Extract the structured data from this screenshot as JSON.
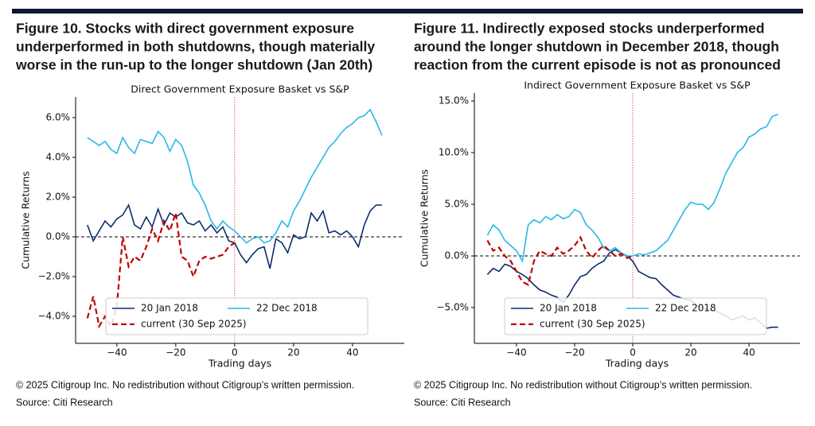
{
  "figures": [
    {
      "title_lines": [
        "Figure 10. Stocks with direct government exposure",
        "underperformed in both shutdowns, though materially",
        "worse in the run-up to the longer shutdown (Jan 20th)"
      ],
      "note": "© 2025 Citigroup Inc. No redistribution without Citigroup’s written permission.",
      "source": "Source: Citi Research"
    },
    {
      "title_lines": [
        "Figure 11. Indirectly exposed stocks underperformed",
        "around the longer shutdown in December 2018, though",
        "reaction from the current episode is not as pronounced"
      ],
      "note": "© 2025 Citigroup Inc. No redistribution without Citigroup’s written permission.",
      "source": "Source: Citi Research"
    }
  ],
  "chart_data": [
    {
      "type": "line",
      "title": "Direct Government Exposure Basket vs S&P",
      "x_label": "Trading days",
      "y_label": "Cumulative Returns",
      "x": [
        -50,
        -48,
        -46,
        -44,
        -42,
        -40,
        -38,
        -36,
        -34,
        -32,
        -30,
        -28,
        -26,
        -24,
        -22,
        -20,
        -18,
        -16,
        -14,
        -12,
        -10,
        -8,
        -6,
        -4,
        -2,
        0,
        2,
        4,
        6,
        8,
        10,
        12,
        14,
        16,
        18,
        20,
        22,
        24,
        26,
        28,
        30,
        32,
        34,
        36,
        38,
        40,
        42,
        44,
        46,
        48,
        50
      ],
      "series": [
        {
          "name": "20 Jan 2018",
          "color": "#0b2d6b",
          "dash": false,
          "values": [
            0.6,
            -0.2,
            0.3,
            0.8,
            0.5,
            0.9,
            1.1,
            1.6,
            0.6,
            0.4,
            1.0,
            0.5,
            1.4,
            0.6,
            1.2,
            1.0,
            1.2,
            0.7,
            0.6,
            0.8,
            0.3,
            0.6,
            0.2,
            0.5,
            -0.2,
            -0.3,
            -0.9,
            -1.3,
            -0.9,
            -0.6,
            -0.5,
            -1.6,
            -0.1,
            -0.3,
            -0.8,
            0.1,
            -0.1,
            0.0,
            1.2,
            0.8,
            1.3,
            0.2,
            0.3,
            0.1,
            0.3,
            0.0,
            -0.5,
            0.6,
            1.3,
            1.6,
            1.6
          ]
        },
        {
          "name": "22 Dec 2018",
          "color": "#27b8e8",
          "dash": false,
          "values": [
            5.0,
            4.8,
            4.6,
            4.8,
            4.4,
            4.2,
            5.0,
            4.5,
            4.2,
            4.9,
            4.8,
            4.7,
            5.3,
            5.0,
            4.3,
            4.9,
            4.6,
            3.8,
            2.6,
            2.2,
            1.6,
            0.8,
            0.4,
            0.8,
            0.5,
            0.3,
            0.0,
            -0.3,
            -0.1,
            0.0,
            -0.3,
            -0.2,
            0.2,
            0.8,
            0.5,
            1.3,
            1.8,
            2.4,
            3.0,
            3.5,
            4.0,
            4.5,
            4.8,
            5.2,
            5.5,
            5.7,
            6.0,
            6.1,
            6.4,
            5.8,
            5.1
          ]
        },
        {
          "name": "current (30 Sep 2025)",
          "color": "#c00000",
          "dash": true,
          "values": [
            -4.1,
            -3.0,
            -4.5,
            -4.0,
            -4.5,
            -3.5,
            0.0,
            -1.5,
            -1.0,
            -1.2,
            -0.5,
            0.4,
            -0.2,
            0.8,
            0.3,
            1.2,
            -1.0,
            -1.2,
            -2.0,
            -1.2,
            -1.0,
            -1.1,
            -1.0,
            -0.9,
            -0.5,
            -0.3,
            null,
            null,
            null,
            null,
            null,
            null,
            null,
            null,
            null,
            null,
            null,
            null,
            null,
            null,
            null,
            null,
            null,
            null,
            null,
            null,
            null,
            null,
            null,
            null,
            null
          ]
        }
      ],
      "xlim": [
        -54,
        57.6
      ],
      "xticks": [
        {
          "value": -40,
          "label": "−40"
        },
        {
          "value": -20,
          "label": "−20"
        },
        0,
        20,
        40
      ],
      "ylim": [
        -5.36,
        7.04
      ],
      "yticks": [
        {
          "value": -4,
          "label": "−4.0%"
        },
        {
          "value": -2,
          "label": "−2.0%"
        },
        {
          "value": 0,
          "label": "0.0%"
        },
        {
          "value": 2,
          "label": "2.0%"
        },
        {
          "value": 4,
          "label": "4.0%"
        },
        {
          "value": 6,
          "label": "6.0%"
        }
      ],
      "hline": 0,
      "vline": 0,
      "legend": "lower left"
    },
    {
      "type": "line",
      "title": "Indirect Government Exposure Basket vs S&P",
      "x_label": "Trading days",
      "y_label": "Cumulative Returns",
      "x": [
        -50,
        -48,
        -46,
        -44,
        -42,
        -40,
        -38,
        -36,
        -34,
        -32,
        -30,
        -28,
        -26,
        -24,
        -22,
        -20,
        -18,
        -16,
        -14,
        -12,
        -10,
        -8,
        -6,
        -4,
        -2,
        0,
        2,
        4,
        6,
        8,
        10,
        12,
        14,
        16,
        18,
        20,
        22,
        24,
        26,
        28,
        30,
        32,
        34,
        36,
        38,
        40,
        42,
        44,
        46,
        48,
        50
      ],
      "series": [
        {
          "name": "20 Jan 2018",
          "color": "#0b2d6b",
          "dash": false,
          "values": [
            -1.8,
            -1.2,
            -1.5,
            -0.8,
            -1.0,
            -1.5,
            -1.8,
            -2.2,
            -2.8,
            -3.3,
            -3.5,
            -3.8,
            -4.0,
            -4.5,
            -3.8,
            -2.8,
            -2.0,
            -1.8,
            -1.2,
            -0.8,
            -0.5,
            0.3,
            0.6,
            0.3,
            0.0,
            -0.5,
            -1.5,
            -1.8,
            -2.1,
            -2.2,
            -2.8,
            -3.3,
            -3.8,
            -4.0,
            -4.2,
            -4.3,
            -4.8,
            -5.0,
            -5.2,
            -5.3,
            -5.5,
            -5.8,
            -6.2,
            -6.0,
            -5.8,
            -6.2,
            -6.0,
            -6.5,
            -7.0,
            -6.9,
            -6.9
          ]
        },
        {
          "name": "22 Dec 2018",
          "color": "#27b8e8",
          "dash": false,
          "values": [
            2.0,
            3.0,
            2.5,
            1.5,
            1.0,
            0.5,
            -0.5,
            3.0,
            3.5,
            3.2,
            3.8,
            3.5,
            4.0,
            3.6,
            3.8,
            4.5,
            4.2,
            3.0,
            2.5,
            1.8,
            0.8,
            0.5,
            0.8,
            0.3,
            0.0,
            0.0,
            0.2,
            0.1,
            0.3,
            0.5,
            1.0,
            1.5,
            2.5,
            3.5,
            4.5,
            5.2,
            5.0,
            5.0,
            4.5,
            5.2,
            6.5,
            8.0,
            9.0,
            10.0,
            10.5,
            11.5,
            11.8,
            12.3,
            12.5,
            13.5,
            13.7
          ]
        },
        {
          "name": "current (30 Sep 2025)",
          "color": "#c00000",
          "dash": true,
          "values": [
            1.5,
            0.5,
            0.8,
            0.0,
            -0.5,
            -1.5,
            -2.5,
            -2.8,
            -0.5,
            0.5,
            0.2,
            0.0,
            0.8,
            0.2,
            0.5,
            1.0,
            1.8,
            0.5,
            -0.2,
            0.5,
            1.0,
            0.5,
            0.0,
            0.2,
            -0.2,
            0.0,
            null,
            null,
            null,
            null,
            null,
            null,
            null,
            null,
            null,
            null,
            null,
            null,
            null,
            null,
            null,
            null,
            null,
            null,
            null,
            null,
            null,
            null,
            null,
            null,
            null
          ]
        }
      ],
      "xlim": [
        -54.5,
        57.5
      ],
      "xticks": [
        {
          "value": -40,
          "label": "−40"
        },
        {
          "value": -20,
          "label": "−20"
        },
        0,
        20,
        40
      ],
      "ylim": [
        -8.46,
        15.77
      ],
      "yticks": [
        {
          "value": -5,
          "label": "−5.0%"
        },
        {
          "value": 0,
          "label": "0.0%"
        },
        {
          "value": 5,
          "label": "5.0%"
        },
        {
          "value": 10,
          "label": "10.0%"
        },
        {
          "value": 15,
          "label": "15.0%"
        }
      ],
      "hline": 0,
      "vline": 0,
      "legend": "lower left"
    }
  ]
}
